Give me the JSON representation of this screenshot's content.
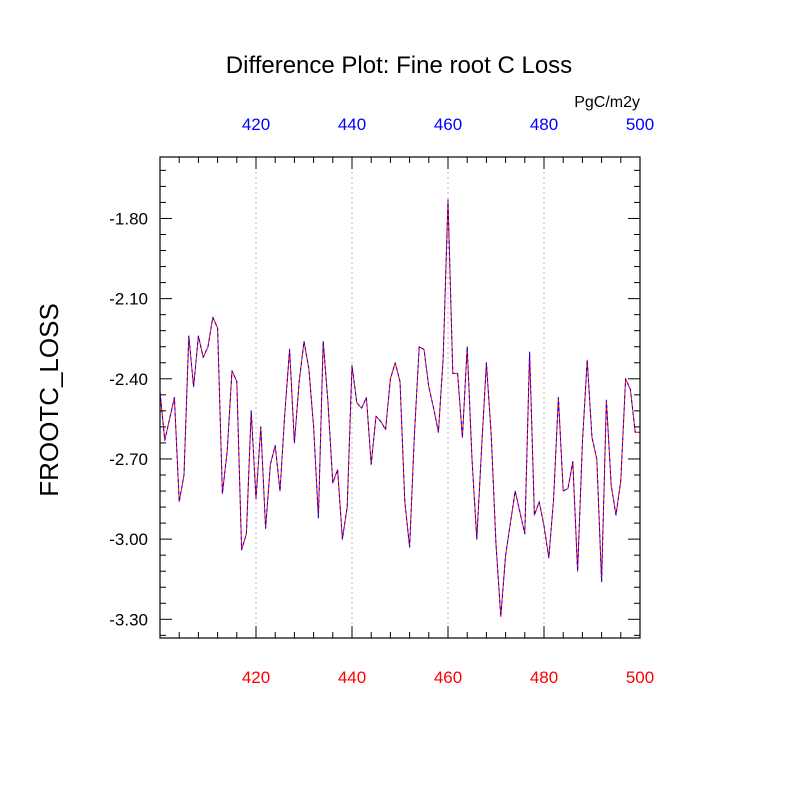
{
  "chart_data": {
    "type": "line",
    "title": "Difference Plot: Fine root C Loss",
    "units": "PgC/m2y",
    "xlabel": "",
    "ylabel": "FROOTC_LOSS",
    "xlim": [
      400,
      500
    ],
    "ylim": [
      -3.37,
      -1.57
    ],
    "x_ticks": [
      420,
      440,
      460,
      480,
      500
    ],
    "x_tick_labels": [
      "420",
      "440",
      "460",
      "480",
      "500"
    ],
    "y_ticks": [
      -1.8,
      -2.1,
      -2.4,
      -2.7,
      -3.0,
      -3.3
    ],
    "y_tick_labels": [
      "-1.80",
      "-2.10",
      "-2.40",
      "-2.70",
      "-3.00",
      "-3.30"
    ],
    "grid": "vertical dotted at x ticks",
    "colors": {
      "bottom_axis_labels": "#ff0000",
      "top_axis_labels": "#0000ff",
      "series_a": "#ff0000",
      "series_b": "#0000ff",
      "grid": "#bbbbbb",
      "frame": "#000000"
    },
    "x": [
      400,
      401,
      402,
      403,
      404,
      405,
      406,
      407,
      408,
      409,
      410,
      411,
      412,
      413,
      414,
      415,
      416,
      417,
      418,
      419,
      420,
      421,
      422,
      423,
      424,
      425,
      426,
      427,
      428,
      429,
      430,
      431,
      432,
      433,
      434,
      435,
      436,
      437,
      438,
      439,
      440,
      441,
      442,
      443,
      444,
      445,
      446,
      447,
      448,
      449,
      450,
      451,
      452,
      453,
      454,
      455,
      456,
      457,
      458,
      459,
      460,
      461,
      462,
      463,
      464,
      465,
      466,
      467,
      468,
      469,
      470,
      471,
      472,
      473,
      474,
      475,
      476,
      477,
      478,
      479,
      480,
      481,
      482,
      483,
      484,
      485,
      486,
      487,
      488,
      489,
      490,
      491,
      492,
      493,
      494,
      495,
      496,
      497,
      498,
      499,
      500
    ],
    "series": [
      {
        "values": [
          -2.45,
          -2.63,
          -2.55,
          -2.47,
          -2.86,
          -2.76,
          -2.24,
          -2.43,
          -2.24,
          -2.32,
          -2.28,
          -2.17,
          -2.21,
          -2.83,
          -2.67,
          -2.37,
          -2.41,
          -3.04,
          -2.98,
          -2.52,
          -2.85,
          -2.58,
          -2.96,
          -2.72,
          -2.65,
          -2.82,
          -2.53,
          -2.29,
          -2.64,
          -2.41,
          -2.26,
          -2.36,
          -2.58,
          -2.92,
          -2.26,
          -2.49,
          -2.79,
          -2.74,
          -3.0,
          -2.88,
          -2.35,
          -2.49,
          -2.51,
          -2.47,
          -2.72,
          -2.54,
          -2.56,
          -2.59,
          -2.4,
          -2.34,
          -2.41,
          -2.86,
          -3.03,
          -2.61,
          -2.28,
          -2.29,
          -2.43,
          -2.51,
          -2.6,
          -2.32,
          -1.73,
          -2.38,
          -2.38,
          -2.62,
          -2.28,
          -2.7,
          -3.0,
          -2.66,
          -2.34,
          -2.61,
          -3.02,
          -3.29,
          -3.06,
          -2.94,
          -2.82,
          -2.9,
          -2.98,
          -2.3,
          -2.91,
          -2.86,
          -2.95,
          -3.07,
          -2.85,
          -2.47,
          -2.82,
          -2.81,
          -2.71,
          -3.12,
          -2.64,
          -2.33,
          -2.62,
          -2.7,
          -3.16,
          -2.48,
          -2.8,
          -2.91,
          -2.78,
          -2.4,
          -2.44,
          -2.6,
          -2.6
        ]
      },
      {
        "values": [
          -2.45,
          -2.63,
          -2.55,
          -2.47,
          -2.86,
          -2.76,
          -2.24,
          -2.43,
          -2.24,
          -2.32,
          -2.28,
          -2.17,
          -2.21,
          -2.83,
          -2.67,
          -2.37,
          -2.41,
          -3.04,
          -2.98,
          -2.52,
          -2.85,
          -2.58,
          -2.96,
          -2.72,
          -2.65,
          -2.82,
          -2.53,
          -2.29,
          -2.64,
          -2.41,
          -2.26,
          -2.36,
          -2.58,
          -2.92,
          -2.26,
          -2.49,
          -2.79,
          -2.74,
          -3.0,
          -2.88,
          -2.35,
          -2.49,
          -2.51,
          -2.47,
          -2.72,
          -2.54,
          -2.56,
          -2.59,
          -2.4,
          -2.34,
          -2.41,
          -2.86,
          -3.03,
          -2.61,
          -2.28,
          -2.29,
          -2.43,
          -2.51,
          -2.6,
          -2.32,
          -1.73,
          -2.38,
          -2.38,
          -2.62,
          -2.28,
          -2.7,
          -3.0,
          -2.66,
          -2.34,
          -2.61,
          -3.02,
          -3.29,
          -3.06,
          -2.94,
          -2.82,
          -2.9,
          -2.98,
          -2.3,
          -2.91,
          -2.86,
          -2.95,
          -3.07,
          -2.85,
          -2.47,
          -2.82,
          -2.81,
          -2.71,
          -3.12,
          -2.64,
          -2.33,
          -2.62,
          -2.7,
          -3.16,
          -2.48,
          -2.8,
          -2.91,
          -2.78,
          -2.4,
          -2.44,
          -2.6,
          -2.6
        ]
      }
    ]
  }
}
